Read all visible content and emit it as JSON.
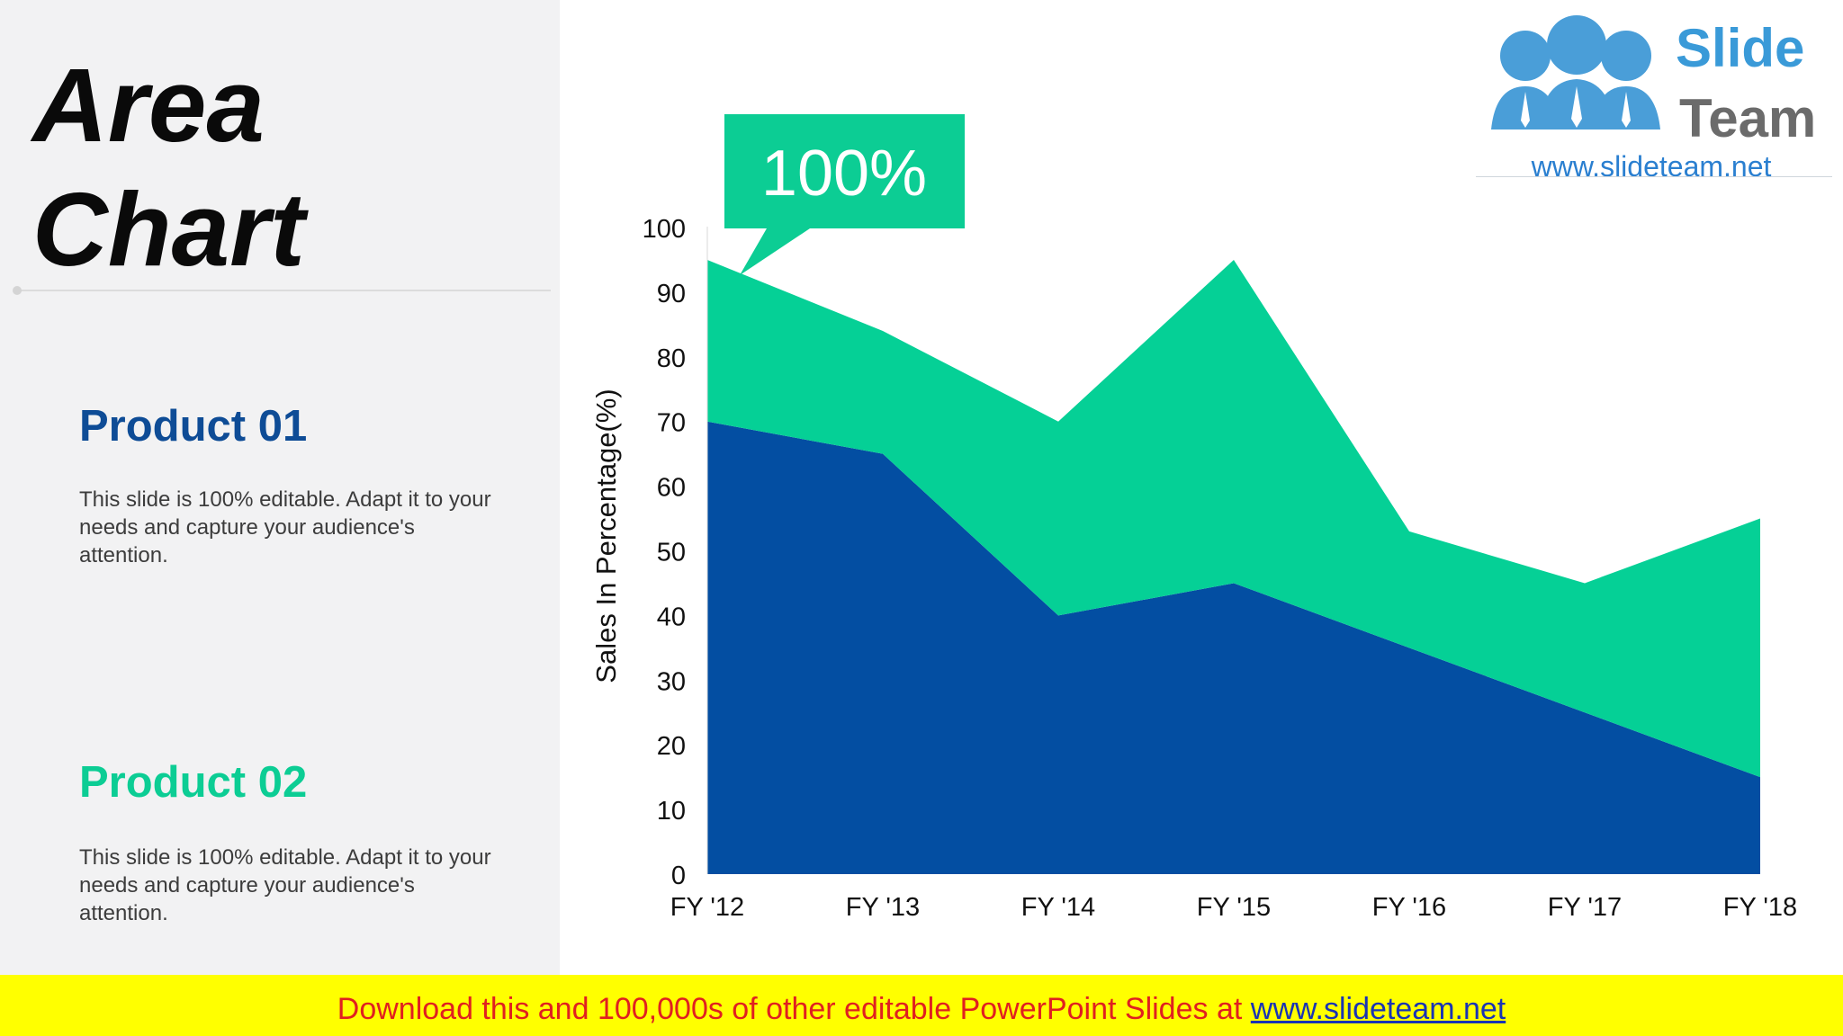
{
  "slide": {
    "title_line1": "Area",
    "title_line2": "Chart"
  },
  "products": [
    {
      "title": "Product 01",
      "description": "This slide is 100% editable. Adapt it to your needs and capture your audience's attention.",
      "color": "#0e4c96"
    },
    {
      "title": "Product 02",
      "description": "This slide is 100% editable. Adapt it to your needs and capture your audience's attention.",
      "color": "#0ccd94"
    }
  ],
  "callout": {
    "text": "100%",
    "color": "#0ccd94"
  },
  "logo": {
    "word1": "Slide",
    "word2": "Team",
    "url": "www.slideteam.net"
  },
  "footer": {
    "text": "Download this and 100,000s of other editable PowerPoint Slides at ",
    "link": "www.slideteam.net"
  },
  "chart_data": {
    "type": "area",
    "stacked": true,
    "categories": [
      "FY '12",
      "FY '13",
      "FY '14",
      "FY '15",
      "FY '16",
      "FY '17",
      "FY '18"
    ],
    "series": [
      {
        "values": [
          70,
          65,
          40,
          45,
          35,
          25,
          15
        ],
        "color": "#034ea2"
      },
      {
        "values": [
          25,
          19,
          30,
          50,
          18,
          20,
          40
        ],
        "color": "#05d096"
      }
    ],
    "ylabel": "Sales In Percentage(%)",
    "yticks": [
      "0",
      "10",
      "20",
      "30",
      "40",
      "50",
      "60",
      "70",
      "80",
      "90",
      "100"
    ],
    "ylim": [
      0,
      100
    ],
    "grid": false
  }
}
